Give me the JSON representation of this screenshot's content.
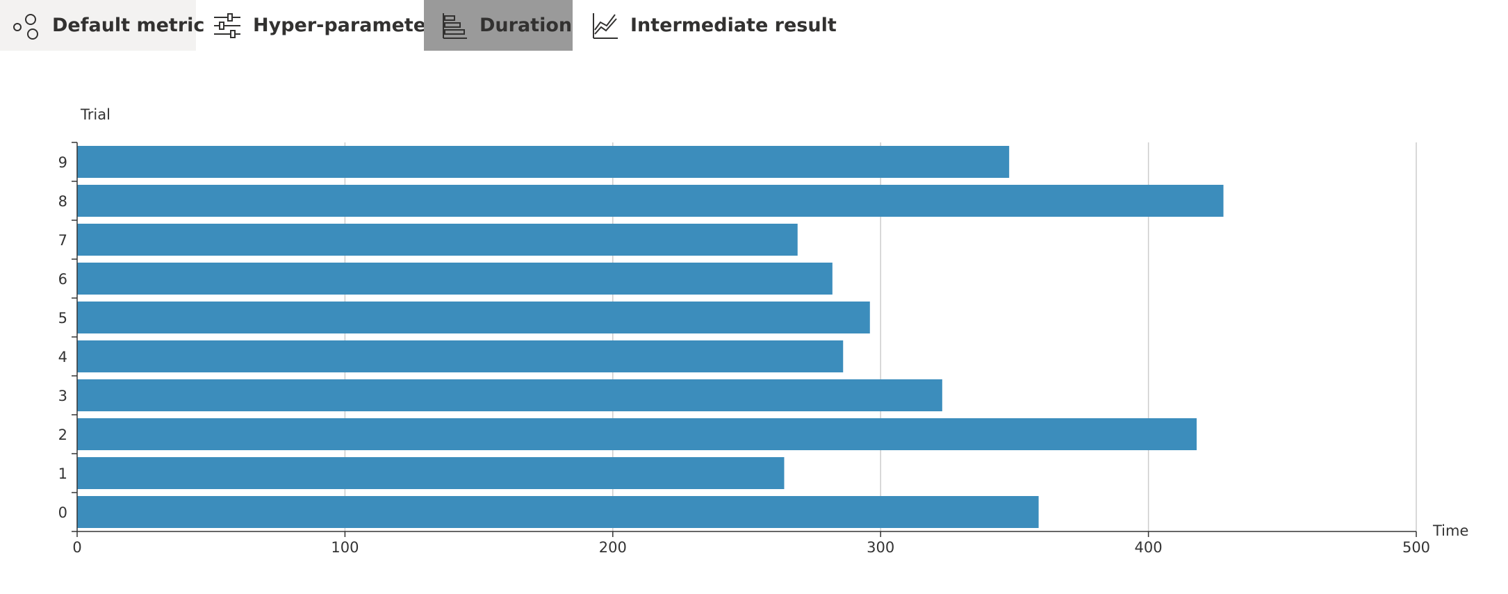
{
  "tabs": [
    {
      "label": "Default metric",
      "icon": "scatter-circles-icon"
    },
    {
      "label": "Hyper-parameter",
      "icon": "sliders-icon"
    },
    {
      "label": "Duration",
      "icon": "bar-chart-icon",
      "active": true
    },
    {
      "label": "Intermediate result",
      "icon": "line-chart-icon"
    }
  ],
  "colors": {
    "bar": "#3c8dbc",
    "active_tab_bg": "#9a9a9a",
    "default_tab_bg": "#f3f2f1",
    "grid": "#cccccc"
  },
  "chart_data": {
    "type": "bar",
    "orientation": "horizontal",
    "ylabel": "Trial",
    "xlabel": "Time",
    "categories": [
      "0",
      "1",
      "2",
      "3",
      "4",
      "5",
      "6",
      "7",
      "8",
      "9"
    ],
    "values": [
      359,
      264,
      418,
      323,
      286,
      296,
      282,
      269,
      428,
      348
    ],
    "xlim": [
      0,
      500
    ],
    "xticks": [
      "0",
      "100",
      "200",
      "300",
      "400",
      "500"
    ],
    "grid": "vertical"
  }
}
